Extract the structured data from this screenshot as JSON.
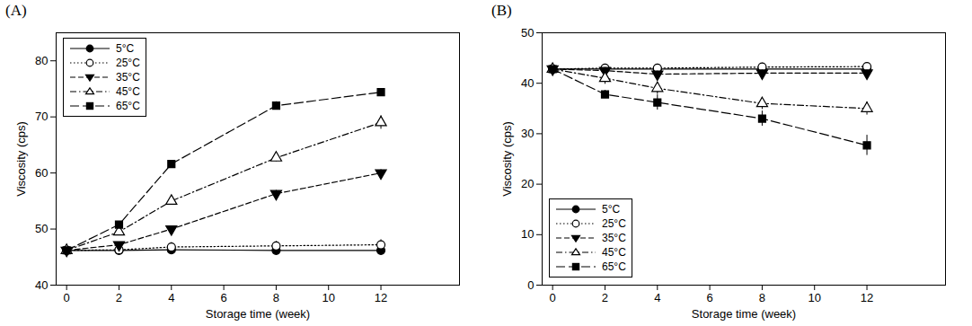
{
  "chart_data": [
    {
      "type": "line",
      "title": "(A)",
      "x_label": "Storage time (week)",
      "y_label": "Viscosity (cps)",
      "x": [
        0,
        2,
        4,
        8,
        12
      ],
      "xlim": [
        -0.4,
        15
      ],
      "xticks": [
        0,
        2,
        4,
        6,
        8,
        10,
        12
      ],
      "ylim": [
        40,
        85
      ],
      "yticks": [
        40,
        50,
        60,
        70,
        80
      ],
      "grid": false,
      "legend": "upper left",
      "series": [
        {
          "name": "5°C",
          "color": "#000000",
          "marker": "circle",
          "line_style": "solid",
          "values": [
            46.2,
            46.2,
            46.3,
            46.2,
            46.2
          ],
          "errors": [
            0,
            0.2,
            0.3,
            0.3,
            0.3
          ]
        },
        {
          "name": "25°C",
          "color": "#000000",
          "marker": "circle-open",
          "line_style": "dotted",
          "values": [
            46.2,
            46.3,
            46.8,
            47.0,
            47.2
          ],
          "errors": [
            0,
            0.8,
            0.8,
            0.8,
            0.9
          ]
        },
        {
          "name": "35°C",
          "color": "#000000",
          "marker": "triangle-down",
          "line_style": "dashed",
          "values": [
            46.2,
            47.2,
            50.0,
            56.3,
            60.0
          ],
          "errors": [
            0,
            0.3,
            0.4,
            0.6,
            0.6
          ]
        },
        {
          "name": "45°C",
          "color": "#000000",
          "marker": "triangle-open",
          "line_style": "dashdot",
          "values": [
            46.2,
            49.5,
            55.0,
            62.7,
            69.0
          ],
          "errors": [
            0,
            0.4,
            0.6,
            0.7,
            1.2
          ]
        },
        {
          "name": "65°C",
          "color": "#000000",
          "marker": "square",
          "line_style": "longdash",
          "values": [
            46.2,
            50.8,
            61.6,
            72.0,
            74.4
          ],
          "errors": [
            0,
            0.3,
            0.4,
            0.7,
            0.6
          ]
        }
      ]
    },
    {
      "type": "line",
      "title": "(B)",
      "x_label": "Storage time (week)",
      "y_label": "Viscosity (cps)",
      "x": [
        0,
        2,
        4,
        8,
        12
      ],
      "xlim": [
        -0.4,
        15
      ],
      "xticks": [
        0,
        2,
        4,
        6,
        8,
        10,
        12
      ],
      "ylim": [
        0,
        50
      ],
      "yticks": [
        0,
        10,
        20,
        30,
        40,
        50
      ],
      "grid": false,
      "legend": "lower left",
      "series": [
        {
          "name": "5°C",
          "color": "#000000",
          "marker": "circle",
          "line_style": "solid",
          "values": [
            42.8,
            42.8,
            42.8,
            42.8,
            42.8
          ],
          "errors": [
            0,
            0.5,
            0.5,
            0.5,
            0.5
          ]
        },
        {
          "name": "25°C",
          "color": "#000000",
          "marker": "circle-open",
          "line_style": "dotted",
          "values": [
            42.8,
            43.0,
            43.0,
            43.2,
            43.3
          ],
          "errors": [
            0,
            0.8,
            0.8,
            0.8,
            0.8
          ]
        },
        {
          "name": "35°C",
          "color": "#000000",
          "marker": "triangle-down",
          "line_style": "dashed",
          "values": [
            42.8,
            42.5,
            41.8,
            42.0,
            42.0
          ],
          "errors": [
            0,
            0.6,
            0.6,
            0.6,
            0.6
          ]
        },
        {
          "name": "45°C",
          "color": "#000000",
          "marker": "triangle-open",
          "line_style": "dashdot",
          "values": [
            42.8,
            41.0,
            39.0,
            36.0,
            35.0
          ],
          "errors": [
            0,
            1.2,
            1.2,
            1.2,
            1.3
          ]
        },
        {
          "name": "65°C",
          "color": "#000000",
          "marker": "square",
          "line_style": "longdash",
          "values": [
            42.8,
            37.8,
            36.2,
            33.0,
            27.7
          ],
          "errors": [
            0,
            0.8,
            1.5,
            1.5,
            2.0
          ]
        }
      ]
    }
  ]
}
